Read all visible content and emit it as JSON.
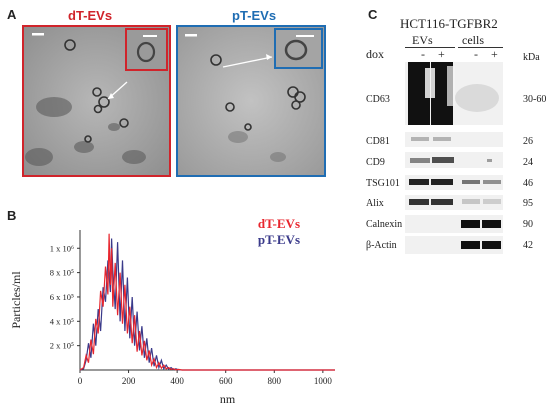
{
  "panel_a": {
    "letter": "A",
    "left_title": "dT-EVs",
    "right_title": "pT-EVs",
    "left_color": "#d0242b",
    "right_color": "#1f6db3"
  },
  "panel_b": {
    "letter": "B",
    "series_colors": [
      "#e8262e",
      "#3a3a8a"
    ]
  },
  "panel_c": {
    "letter": "C",
    "cell_line": "HCT116-TGFBR2",
    "treatment_label": "dox",
    "group_evs": "EVs",
    "group_cells": "cells",
    "lane_signs": [
      "-",
      "+",
      "-",
      "+"
    ],
    "kda_header": "kDa",
    "rows": [
      {
        "protein": "CD63",
        "kda": "30-60"
      },
      {
        "protein": "CD81",
        "kda": "26"
      },
      {
        "protein": "CD9",
        "kda": "24"
      },
      {
        "protein": "TSG101",
        "kda": "46"
      },
      {
        "protein": "Alix",
        "kda": "95"
      },
      {
        "protein": "Calnexin",
        "kda": "90"
      },
      {
        "protein": "β-Actin",
        "kda": "42"
      }
    ]
  },
  "chart_data": {
    "type": "line",
    "ylabel": "Particles/ml",
    "xlabel": "nm",
    "xlim": [
      0,
      1050
    ],
    "ylim": [
      0,
      1150000
    ],
    "x_ticks": [
      "0",
      "200",
      "400",
      "600",
      "800",
      "1000"
    ],
    "x_tick_values": [
      0,
      200,
      400,
      600,
      800,
      1000
    ],
    "y_ticks": [
      "2 x 10⁵",
      "4 x 10⁵",
      "6 x 10⁵",
      "8 x 10⁵",
      "1 x 10⁶"
    ],
    "y_tick_values": [
      200000,
      400000,
      600000,
      800000,
      1000000
    ],
    "legend_position": "top-right",
    "series": [
      {
        "name": "dT-EVs",
        "color": "#e8262e",
        "x": [
          0,
          15,
          25,
          35,
          45,
          55,
          65,
          75,
          85,
          95,
          105,
          115,
          120,
          125,
          130,
          135,
          145,
          155,
          165,
          175,
          185,
          195,
          205,
          215,
          225,
          235,
          245,
          255,
          265,
          275,
          285,
          295,
          305,
          315,
          325,
          335,
          345,
          355,
          365,
          375,
          385,
          395,
          405,
          420,
          450,
          500,
          600,
          700,
          800,
          900,
          1000,
          1050
        ],
        "y": [
          0,
          20000,
          120000,
          60000,
          250000,
          130000,
          420000,
          300000,
          650000,
          520000,
          850000,
          620000,
          1120000,
          700000,
          1000000,
          520000,
          880000,
          450000,
          800000,
          380000,
          700000,
          300000,
          520000,
          220000,
          450000,
          150000,
          320000,
          120000,
          240000,
          80000,
          160000,
          40000,
          90000,
          20000,
          60000,
          15000,
          40000,
          10000,
          20000,
          5000,
          10000,
          2000,
          5000,
          0,
          0,
          0,
          0,
          0,
          0,
          0,
          0,
          0
        ]
      },
      {
        "name": "pT-EVs",
        "color": "#3a3a8a",
        "x": [
          0,
          15,
          25,
          35,
          45,
          55,
          65,
          75,
          85,
          95,
          105,
          115,
          125,
          130,
          135,
          145,
          155,
          165,
          175,
          185,
          195,
          205,
          215,
          225,
          235,
          245,
          255,
          265,
          275,
          285,
          295,
          305,
          315,
          325,
          335,
          345,
          355,
          365,
          375,
          385,
          395,
          405,
          420,
          450,
          500,
          600,
          700,
          800,
          900,
          1000,
          1050
        ],
        "y": [
          0,
          10000,
          80000,
          220000,
          100000,
          380000,
          200000,
          500000,
          320000,
          680000,
          560000,
          900000,
          640000,
          1080000,
          820000,
          500000,
          1050000,
          400000,
          900000,
          320000,
          760000,
          260000,
          600000,
          200000,
          480000,
          160000,
          360000,
          100000,
          260000,
          60000,
          180000,
          30000,
          120000,
          20000,
          80000,
          10000,
          40000,
          8000,
          20000,
          3000,
          10000,
          2000,
          0,
          0,
          0,
          0,
          0,
          0,
          0,
          0,
          0
        ]
      }
    ]
  }
}
